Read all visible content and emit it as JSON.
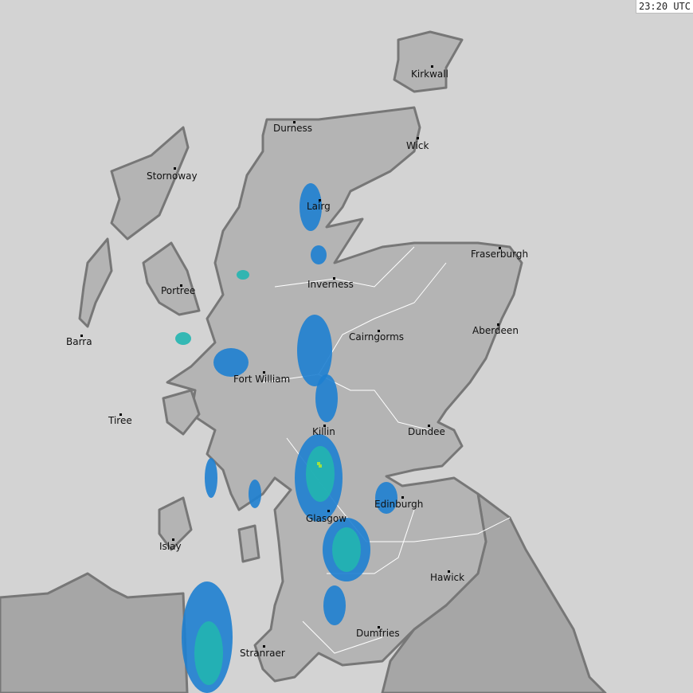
{
  "timestamp": "23:20 UTC",
  "colors": {
    "sea": "#d3d3d3",
    "land": "#b4b4b4",
    "england": "#a6a6a6",
    "coast": "#777777",
    "rain_light": "#1e7fd0",
    "rain_mod": "#22b5b0",
    "rain_heavy": "#a0e040"
  },
  "places": [
    {
      "name": "Kirkwall"
    },
    {
      "name": "Durness"
    },
    {
      "name": "Wick"
    },
    {
      "name": "Stornoway"
    },
    {
      "name": "Lairg"
    },
    {
      "name": "Fraserburgh"
    },
    {
      "name": "Portree"
    },
    {
      "name": "Inverness"
    },
    {
      "name": "Barra"
    },
    {
      "name": "Cairngorms"
    },
    {
      "name": "Aberdeen"
    },
    {
      "name": "Fort William"
    },
    {
      "name": "Tiree"
    },
    {
      "name": "Killin"
    },
    {
      "name": "Dundee"
    },
    {
      "name": "Edinburgh"
    },
    {
      "name": "Glasgow"
    },
    {
      "name": "Islay"
    },
    {
      "name": "Hawick"
    },
    {
      "name": "Dumfries"
    },
    {
      "name": "Stranraer"
    }
  ]
}
